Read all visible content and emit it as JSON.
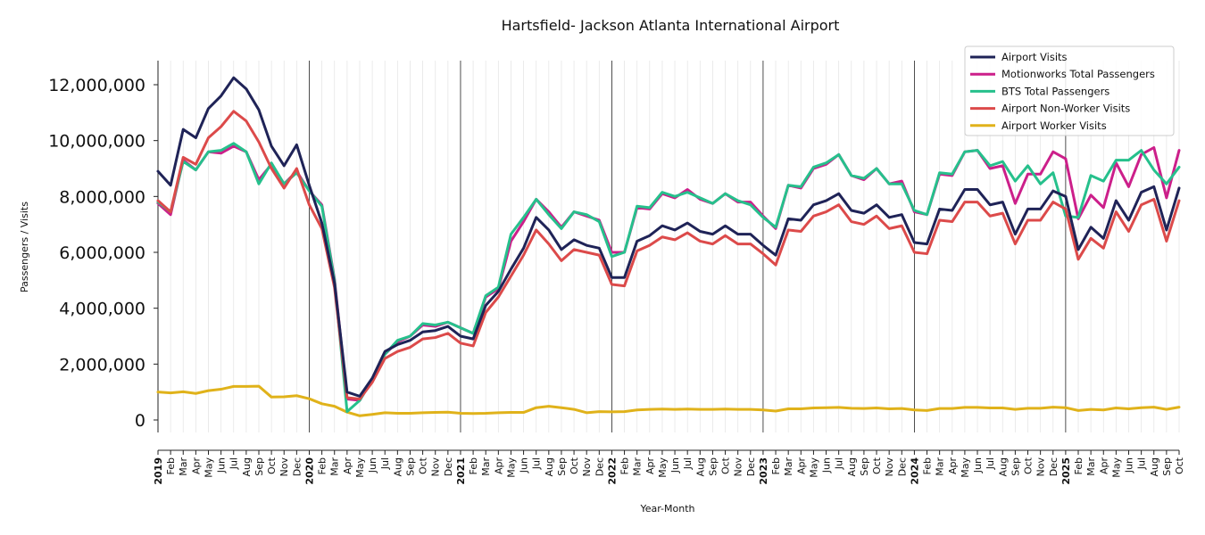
{
  "chart_data": {
    "type": "line",
    "title": "Hartsfield- Jackson Atlanta International Airport",
    "xlabel": "Year-Month",
    "ylabel": "Passengers / Visits",
    "ylim": [
      -500000,
      12800000
    ],
    "yticks": [
      0,
      2000000,
      4000000,
      6000000,
      8000000,
      10000000,
      12000000
    ],
    "ytick_labels": [
      "0",
      "2,000,000",
      "4,000,000",
      "6,000,000",
      "8,000,000",
      "10,000,000",
      "12,000,000"
    ],
    "legend_position": "top-right",
    "grid": "vertical minor lines per month, major lines at each January",
    "x_start": "2019-01",
    "x_end": "2025-10",
    "year_labels": [
      "2019",
      "2020",
      "2021",
      "2022",
      "2023",
      "2024",
      "2025"
    ],
    "month_labels": [
      "Feb",
      "Mar",
      "Apr",
      "May",
      "Jun",
      "Jul",
      "Aug",
      "Sep",
      "Oct",
      "Nov",
      "Dec"
    ],
    "series": [
      {
        "name": "Airport Visits",
        "color": "#1f2357",
        "values": [
          8900000,
          8400000,
          10400000,
          10100000,
          11150000,
          11600000,
          12250000,
          11850000,
          11100000,
          9800000,
          9100000,
          9850000,
          8400000,
          7050000,
          4900000,
          1000000,
          850000,
          1500000,
          2450000,
          2700000,
          2850000,
          3150000,
          3200000,
          3350000,
          3000000,
          2900000,
          4100000,
          4600000,
          5400000,
          6150000,
          7250000,
          6800000,
          6100000,
          6450000,
          6250000,
          6150000,
          5100000,
          5100000,
          6400000,
          6600000,
          6950000,
          6800000,
          7050000,
          6750000,
          6650000,
          6950000,
          6650000,
          6650000,
          6250000,
          5900000,
          7200000,
          7150000,
          7700000,
          7850000,
          8100000,
          7500000,
          7400000,
          7700000,
          7250000,
          7350000,
          6350000,
          6300000,
          7550000,
          7500000,
          8250000,
          8250000,
          7700000,
          7800000,
          6650000,
          7550000,
          7550000,
          8200000,
          8000000,
          6100000,
          6900000,
          6500000,
          7850000,
          7150000,
          8150000,
          8350000,
          6800000,
          8300000
        ]
      },
      {
        "name": "Motionworks Total Passengers",
        "color": "#cc1f8a",
        "values": [
          7750000,
          7350000,
          9300000,
          8950000,
          9600000,
          9550000,
          9800000,
          9600000,
          8600000,
          9150000,
          8450000,
          8900000,
          8200000,
          7700000,
          5050000,
          750000,
          700000,
          1450000,
          2350000,
          2800000,
          3000000,
          3400000,
          3350000,
          3500000,
          3300000,
          3100000,
          4400000,
          4700000,
          6400000,
          7100000,
          7900000,
          7450000,
          6900000,
          7450000,
          7300000,
          7150000,
          6000000,
          6000000,
          7600000,
          7550000,
          8100000,
          7950000,
          8250000,
          7900000,
          7750000,
          8100000,
          7800000,
          7800000,
          7300000,
          6850000,
          8400000,
          8300000,
          9000000,
          9150000,
          9500000,
          8750000,
          8600000,
          9000000,
          8450000,
          8550000,
          7450000,
          7350000,
          8800000,
          8750000,
          9600000,
          9650000,
          9000000,
          9100000,
          7750000,
          8800000,
          8800000,
          9600000,
          9350000,
          7200000,
          8050000,
          7600000,
          9200000,
          8350000,
          9500000,
          9750000,
          7950000,
          9650000
        ]
      },
      {
        "name": "BTS Total Passengers",
        "color": "#26c08c",
        "values": [
          7800000,
          7450000,
          9250000,
          8950000,
          9600000,
          9650000,
          9900000,
          9600000,
          8450000,
          9200000,
          8450000,
          8850000,
          8200000,
          7650000,
          5000000,
          300000,
          700000,
          1450000,
          2350000,
          2850000,
          3000000,
          3450000,
          3400000,
          3500000,
          3300000,
          3100000,
          4450000,
          4750000,
          6650000,
          7250000,
          7900000,
          7350000,
          6850000,
          7450000,
          7350000,
          7100000,
          5850000,
          6000000,
          7650000,
          7600000,
          8150000,
          8000000,
          8150000,
          7950000,
          7750000,
          8100000,
          7850000,
          7700000,
          7250000,
          6900000,
          8400000,
          8350000,
          9050000,
          9200000,
          9500000,
          8750000,
          8650000,
          9000000,
          8450000,
          8450000,
          7500000,
          7350000,
          8850000,
          8800000,
          9600000,
          9650000,
          9100000,
          9250000,
          8550000,
          9100000,
          8450000,
          8850000,
          7300000,
          7250000,
          8750000,
          8550000,
          9300000,
          9300000,
          9650000,
          8950000,
          8450000,
          9050000
        ]
      },
      {
        "name": "Airport Non-Worker Visits",
        "color": "#dc4a4a",
        "values": [
          7850000,
          7450000,
          9400000,
          9150000,
          10100000,
          10500000,
          11050000,
          10700000,
          9950000,
          9000000,
          8300000,
          9000000,
          7700000,
          6850000,
          4750000,
          800000,
          750000,
          1350000,
          2200000,
          2450000,
          2600000,
          2900000,
          2950000,
          3100000,
          2750000,
          2650000,
          3850000,
          4400000,
          5150000,
          5900000,
          6800000,
          6300000,
          5700000,
          6100000,
          6000000,
          5900000,
          4850000,
          4800000,
          6050000,
          6250000,
          6550000,
          6450000,
          6700000,
          6400000,
          6300000,
          6600000,
          6300000,
          6300000,
          5950000,
          5550000,
          6800000,
          6750000,
          7300000,
          7450000,
          7700000,
          7100000,
          7000000,
          7300000,
          6850000,
          6950000,
          6000000,
          5950000,
          7150000,
          7100000,
          7800000,
          7800000,
          7300000,
          7400000,
          6300000,
          7150000,
          7150000,
          7800000,
          7550000,
          5750000,
          6500000,
          6150000,
          7450000,
          6750000,
          7700000,
          7900000,
          6400000,
          7850000
        ]
      },
      {
        "name": "Airport Worker Visits",
        "color": "#e0b21a",
        "values": [
          1000000,
          970000,
          1010000,
          950000,
          1050000,
          1100000,
          1200000,
          1200000,
          1210000,
          820000,
          830000,
          870000,
          760000,
          580000,
          490000,
          280000,
          150000,
          200000,
          260000,
          240000,
          240000,
          260000,
          270000,
          280000,
          240000,
          230000,
          240000,
          260000,
          270000,
          270000,
          440000,
          490000,
          440000,
          380000,
          260000,
          300000,
          290000,
          300000,
          360000,
          380000,
          390000,
          380000,
          390000,
          380000,
          380000,
          390000,
          380000,
          380000,
          360000,
          320000,
          400000,
          400000,
          430000,
          440000,
          450000,
          420000,
          410000,
          430000,
          400000,
          410000,
          360000,
          340000,
          410000,
          410000,
          450000,
          450000,
          430000,
          430000,
          380000,
          420000,
          420000,
          460000,
          440000,
          340000,
          380000,
          360000,
          430000,
          400000,
          440000,
          460000,
          380000,
          460000
        ]
      }
    ]
  }
}
